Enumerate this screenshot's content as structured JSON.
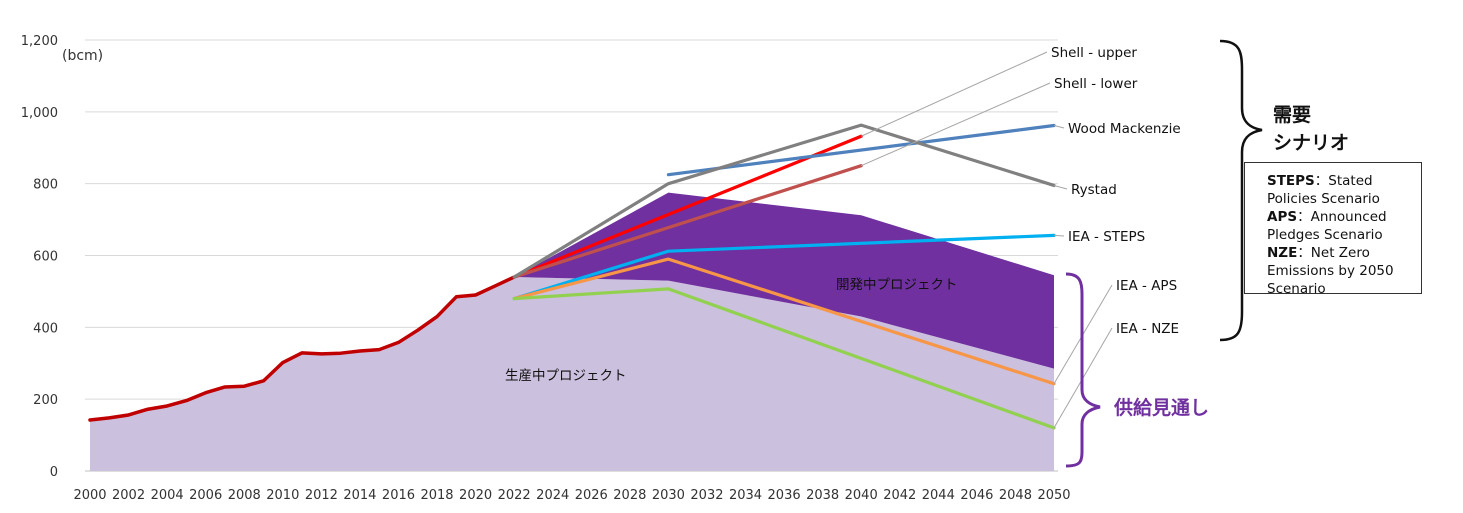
{
  "chart_data": {
    "type": "area",
    "unit_label": "(bcm)",
    "y_ticks": [
      "0",
      "200",
      "400",
      "600",
      "800",
      "1,000",
      "1,200"
    ],
    "ylim": [
      0,
      1200
    ],
    "x_ticks": [
      "2000",
      "2002",
      "2004",
      "2006",
      "2008",
      "2010",
      "2012",
      "2014",
      "2016",
      "2018",
      "2020",
      "2022",
      "2024",
      "2026",
      "2028",
      "2030",
      "2032",
      "2034",
      "2036",
      "2038",
      "2040",
      "2042",
      "2044",
      "2046",
      "2048",
      "2050"
    ],
    "xlim": [
      2000,
      2050
    ],
    "grid": "horizontal",
    "areas": [
      {
        "name": "生産中プロジェクト",
        "color": "#cbc0dd",
        "x": [
          2000,
          2001,
          2002,
          2003,
          2004,
          2005,
          2006,
          2007,
          2008,
          2009,
          2010,
          2011,
          2012,
          2013,
          2014,
          2015,
          2016,
          2017,
          2018,
          2019,
          2020,
          2021,
          2022,
          2030,
          2040,
          2050
        ],
        "y": [
          142,
          148,
          156,
          172,
          181,
          196,
          218,
          234,
          236,
          251,
          302,
          329,
          326,
          328,
          334,
          338,
          358,
          392,
          430,
          485,
          490,
          515,
          540,
          530,
          430,
          285
        ]
      },
      {
        "name": "開発中プロジェクト",
        "color": "#7030a0",
        "x": [
          2022,
          2030,
          2040,
          2050
        ],
        "y": [
          540,
          775,
          712,
          545
        ]
      }
    ],
    "series": [
      {
        "name": "",
        "color": "#c00000",
        "x": [
          2000,
          2001,
          2002,
          2003,
          2004,
          2005,
          2006,
          2007,
          2008,
          2009,
          2010,
          2011,
          2012,
          2013,
          2014,
          2015,
          2016,
          2017,
          2018,
          2019,
          2020,
          2021,
          2022
        ],
        "y": [
          142,
          148,
          156,
          172,
          181,
          196,
          218,
          234,
          236,
          251,
          302,
          329,
          326,
          328,
          334,
          338,
          358,
          392,
          430,
          485,
          490,
          515,
          540
        ]
      },
      {
        "name": "Shell - upper",
        "color": "#ff0000",
        "x": [
          2022,
          2040
        ],
        "y": [
          540,
          932
        ]
      },
      {
        "name": "Shell - lower",
        "color": "#c0504d",
        "x": [
          2022,
          2040
        ],
        "y": [
          540,
          850
        ]
      },
      {
        "name": "Wood Mackenzie",
        "color": "#4f81bd",
        "x": [
          2030,
          2050
        ],
        "y": [
          825,
          962
        ]
      },
      {
        "name": "Rystad",
        "color": "#808080",
        "x": [
          2022,
          2030,
          2040,
          2050
        ],
        "y": [
          540,
          800,
          963,
          795
        ]
      },
      {
        "name": "IEA - STEPS",
        "color": "#00b0f0",
        "x": [
          2022,
          2030,
          2050
        ],
        "y": [
          480,
          612,
          656
        ]
      },
      {
        "name": "IEA - APS",
        "color": "#f79646",
        "x": [
          2022,
          2030,
          2050
        ],
        "y": [
          480,
          590,
          243
        ]
      },
      {
        "name": "IEA - NZE",
        "color": "#92d050",
        "x": [
          2022,
          2030,
          2050
        ],
        "y": [
          480,
          507,
          120
        ]
      }
    ],
    "series_labels": [
      {
        "text": "Shell - upper",
        "x": 2040,
        "y": 932
      },
      {
        "text": "Shell - lower",
        "x": 2040,
        "y": 850
      },
      {
        "text": "Wood Mackenzie",
        "x": 2050,
        "y": 962
      },
      {
        "text": "Rystad",
        "x": 2050,
        "y": 795
      },
      {
        "text": "IEA - STEPS",
        "x": 2050,
        "y": 656
      },
      {
        "text": "IEA - APS",
        "x": 2050,
        "y": 243
      },
      {
        "text": "IEA - NZE",
        "x": 2050,
        "y": 120
      }
    ],
    "area_labels": [
      "生産中プロジェクト",
      "開発中プロジェクト"
    ],
    "groups": {
      "demand": [
        "需要",
        "シナリオ"
      ],
      "supply": "供給見通し"
    }
  },
  "legend_box": [
    {
      "abbr": "STEPS",
      "text": "：Stated Policies Scenario"
    },
    {
      "abbr": "APS",
      "text": "：Announced Pledges Scenario"
    },
    {
      "abbr": "NZE",
      "text": "：Net Zero Emissions by 2050 Scenario"
    }
  ]
}
